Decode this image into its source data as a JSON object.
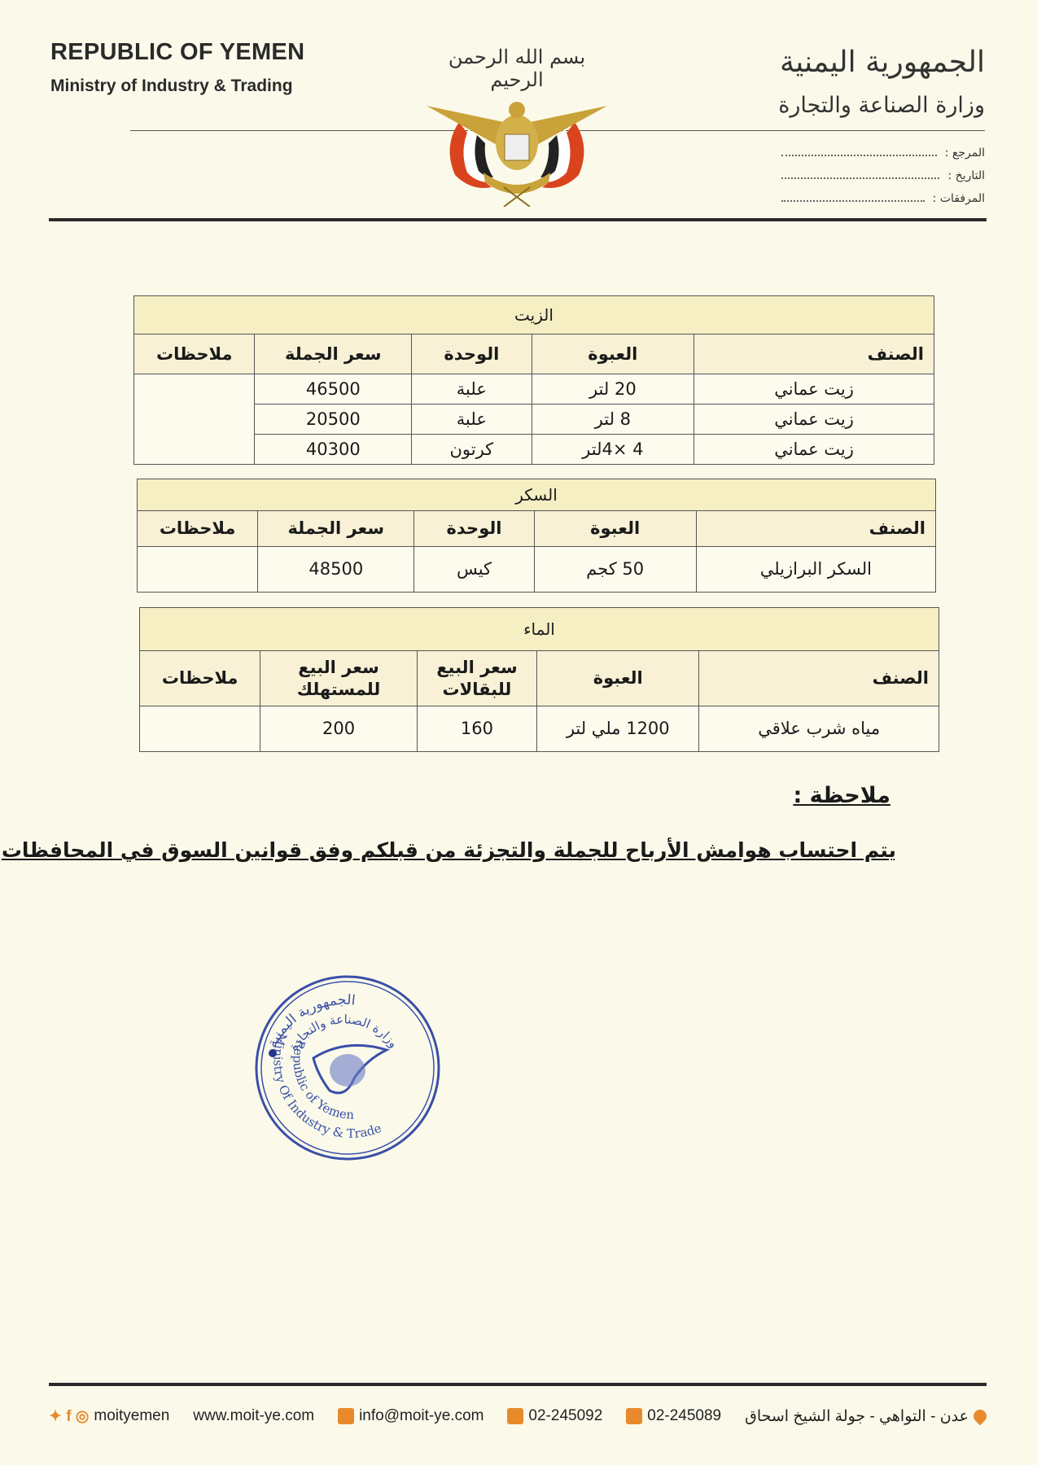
{
  "header": {
    "title_en": "REPUBLIC OF YEMEN",
    "subtitle_en": "Ministry of Industry & Trading",
    "basmala": "بسم الله الرحمن الرحيم",
    "title_ar": "الجمهورية اليمنية",
    "subtitle_ar": "وزارة الصناعة والتجارة",
    "fields": [
      "المرجع :",
      "التاريخ :",
      "المرفقات :"
    ]
  },
  "tables": [
    {
      "title": "الزيت",
      "headers": [
        "الصنف",
        "العبوة",
        "الوحدة",
        "سعر الجملة",
        "ملاحظات"
      ],
      "rows": [
        [
          "زيت عماني",
          "20 لتر",
          "علبة",
          "46500"
        ],
        [
          "زيت عماني",
          "8 لتر",
          "علبة",
          "20500"
        ],
        [
          "زيت عماني",
          "4 ×4لتر",
          "كرتون",
          "40300"
        ]
      ]
    },
    {
      "title": "السكر",
      "headers": [
        "الصنف",
        "العبوة",
        "الوحدة",
        "سعر الجملة",
        "ملاحظات"
      ],
      "rows": [
        [
          "السكر البرازيلي",
          "50 كجم",
          "كيس",
          "48500"
        ]
      ]
    },
    {
      "title": "الماء",
      "headers": [
        "الصنف",
        "العبوة",
        "سعر البيع للبقالات",
        "سعر البيع للمستهلك",
        "ملاحظات"
      ],
      "rows": [
        [
          "مياه شرب علاقي",
          "1200 ملي لتر",
          "160",
          "200"
        ]
      ]
    }
  ],
  "note": {
    "label": "ملاحظة :",
    "text": "يتم احتساب هوامش الأرباح للجملة والتجزئة من قبلكم وفق قوانين السوق في المحافظات"
  },
  "stamp": {
    "ar_outer": "الجمهورية اليمنية",
    "ar_inner": "وزارة الصناعة والتجارة",
    "en_outer": "Ministry Of Industry & Trade",
    "en_inner": "Republic of Yemen"
  },
  "footer": {
    "social": "moityemen",
    "website": "www.moit-ye.com",
    "email": "info@moit-ye.com",
    "phone": "02-245092",
    "fax": "02-245089",
    "address": "عدن - التواهي - جولة الشيخ اسحاق"
  }
}
